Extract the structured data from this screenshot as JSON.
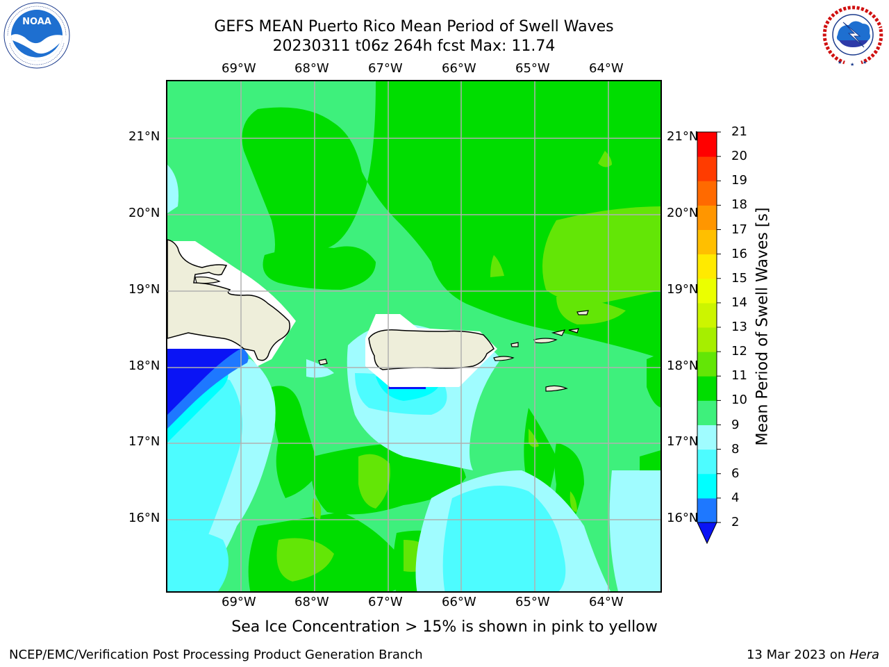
{
  "header": {
    "title_line1": "GEFS MEAN Puerto Rico Mean Period of Swell Waves",
    "title_line2": "20230311 t06z 264h fcst   Max: 11.74"
  },
  "logos": {
    "left": {
      "text": "NOAA",
      "ring_text": "NATIONAL OCEANIC AND ATMOSPHERIC ADMINISTRATION · U.S. DEPARTMENT OF COMMERCE"
    },
    "right": {
      "ring_text": "NATIONAL WEATHER SERVICE"
    }
  },
  "map": {
    "lon_labels": [
      "69°W",
      "68°W",
      "67°W",
      "66°W",
      "65°W",
      "64°W"
    ],
    "lat_labels": [
      "21°N",
      "20°N",
      "19°N",
      "18°N",
      "17°N",
      "16°N"
    ],
    "colors": {
      "land": "#eeeeda",
      "very_dark_blue": "#0a14f5",
      "blue": "#1e78ff",
      "cyan": "#00ffff",
      "light_cyan": "#4dfcff",
      "pale_cyan": "#a0fcff",
      "light_green": "#3ef07c",
      "green": "#00dd00",
      "yellow_green": "#63e606",
      "grid": "#b0b0b0"
    }
  },
  "colorbar": {
    "title": "Mean Period of Swell Waves [s]",
    "levels": [
      "2",
      "4",
      "6",
      "8",
      "9",
      "10",
      "11",
      "12",
      "13",
      "14",
      "15",
      "16",
      "17",
      "18",
      "19",
      "20",
      "21"
    ],
    "colors": [
      "#0a14f5",
      "#1e78ff",
      "#00ffff",
      "#4dfcff",
      "#a0fcff",
      "#3ef07c",
      "#00dd00",
      "#63e606",
      "#a6ee00",
      "#ccf500",
      "#ebff00",
      "#ffea00",
      "#ffbf00",
      "#ff9600",
      "#ff6a00",
      "#ff3c00",
      "#ff0000"
    ]
  },
  "caption": "Sea Ice Concentration > 15% is shown in pink to yellow",
  "footer": {
    "left": "NCEP/EMC/Verification Post Processing Product Generation Branch",
    "right_prefix": "13 Mar 2023 on ",
    "right_host": "Hera"
  }
}
